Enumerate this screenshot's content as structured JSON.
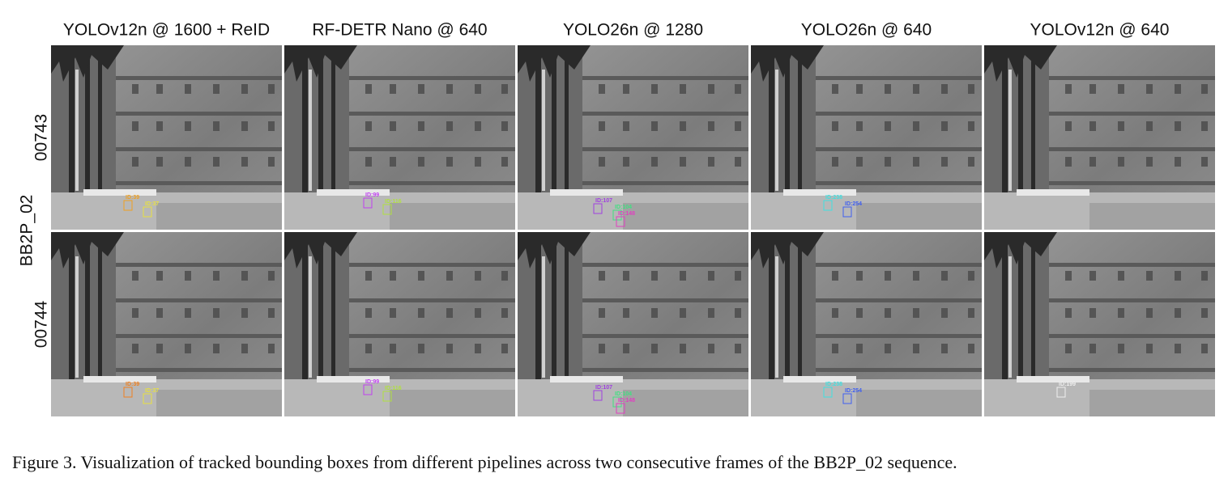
{
  "columns": [
    "YOLOv12n @ 1600 + ReID",
    "RF-DETR Nano @ 640",
    "YOLO26n @ 1280",
    "YOLO26n @ 640",
    "YOLOv12n @ 640"
  ],
  "sequence": "BB2P_02",
  "frames": [
    "00743",
    "00744"
  ],
  "panels": [
    [
      {
        "labels": [
          {
            "text": "ID:39",
            "color": "#f0a020"
          },
          {
            "text": "ID:37",
            "color": "#e8e040"
          }
        ]
      },
      {
        "labels": [
          {
            "text": "ID:99",
            "color": "#c040f0"
          },
          {
            "text": "ID:116",
            "color": "#b0e040"
          }
        ]
      },
      {
        "labels": [
          {
            "text": "ID:107",
            "color": "#a040e0"
          },
          {
            "text": "ID:104",
            "color": "#40e080"
          },
          {
            "text": "ID:148",
            "color": "#e040c0"
          }
        ]
      },
      {
        "labels": [
          {
            "text": "ID:238",
            "color": "#40e0e0"
          },
          {
            "text": "ID:254",
            "color": "#4060f0"
          }
        ]
      },
      {
        "labels": []
      }
    ],
    [
      {
        "labels": [
          {
            "text": "ID:39",
            "color": "#f08020"
          },
          {
            "text": "ID:37",
            "color": "#e8e040"
          }
        ]
      },
      {
        "labels": [
          {
            "text": "ID:99",
            "color": "#c040f0"
          },
          {
            "text": "ID:116",
            "color": "#b0e040"
          }
        ]
      },
      {
        "labels": [
          {
            "text": "ID:107",
            "color": "#a040e0"
          },
          {
            "text": "ID:104",
            "color": "#40e080"
          },
          {
            "text": "ID:148",
            "color": "#e040c0"
          }
        ]
      },
      {
        "labels": [
          {
            "text": "ID:238",
            "color": "#40e0e0"
          },
          {
            "text": "ID:254",
            "color": "#4060f0"
          }
        ]
      },
      {
        "labels": [
          {
            "text": "ID:199",
            "color": "#f0f0f0"
          }
        ]
      }
    ]
  ],
  "caption": "Figure 3. Visualization of tracked bounding boxes from different pipelines across two consecutive frames of the BB2P_02 sequence."
}
